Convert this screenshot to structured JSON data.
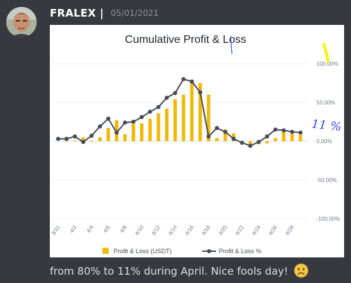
{
  "message": {
    "username": "FRALEX |",
    "timestamp": "05/01/2021",
    "text": "from 80% to 11% during April. Nice fools day!",
    "emoji": "frowning-face"
  },
  "annotations": {
    "handwritten_value": "11 %"
  },
  "chart_data": {
    "type": "bar",
    "title": "Cumulative Profit & Loss",
    "x_ticks": [
      "3/31",
      "4/2",
      "4/4",
      "4/6",
      "4/8",
      "4/10",
      "4/12",
      "4/14",
      "4/16",
      "4/18",
      "4/20",
      "4/22",
      "4/24",
      "4/26",
      "4/28"
    ],
    "y_ticks": [
      "100.00%",
      "50.00%",
      "0.00%",
      "-50.00%",
      "-100.00%"
    ],
    "ylim": [
      -100,
      100
    ],
    "legend_position": "bottom",
    "legend": [
      "Profit & Loss (USDT)",
      "Profit & Loss %"
    ],
    "colors": {
      "bars": "#f0b90b",
      "line": "#474d57",
      "grid": "#eaecef"
    },
    "series": [
      {
        "name": "Profit & Loss (USDT)",
        "type": "bar",
        "x": [
          "4/1",
          "4/2",
          "4/3",
          "4/4",
          "4/5",
          "4/6",
          "4/7",
          "4/8",
          "4/9",
          "4/10",
          "4/11",
          "4/12",
          "4/13",
          "4/14",
          "4/15",
          "4/16",
          "4/17",
          "4/18",
          "4/19",
          "4/20",
          "4/21",
          "4/22",
          "4/23",
          "4/24",
          "4/25",
          "4/26",
          "4/27",
          "4/28",
          "4/29"
        ],
        "values": [
          1,
          1,
          5,
          -1,
          5,
          17,
          27,
          9,
          22,
          23,
          29,
          36,
          42,
          54,
          60,
          78,
          75,
          60,
          4,
          15,
          10,
          0,
          -4,
          -4,
          -3,
          4,
          13,
          11,
          8
        ]
      },
      {
        "name": "Profit & Loss %",
        "type": "line",
        "x": [
          "3/31",
          "4/1",
          "4/2",
          "4/3",
          "4/4",
          "4/5",
          "4/6",
          "4/7",
          "4/8",
          "4/9",
          "4/10",
          "4/11",
          "4/12",
          "4/13",
          "4/14",
          "4/15",
          "4/16",
          "4/17",
          "4/18",
          "4/19",
          "4/20",
          "4/21",
          "4/22",
          "4/23",
          "4/24",
          "4/25",
          "4/26",
          "4/27",
          "4/28",
          "4/29"
        ],
        "values": [
          3,
          3,
          6,
          -1,
          7,
          19,
          29,
          11,
          24,
          25,
          31,
          38,
          44,
          56,
          62,
          80,
          77,
          63,
          6,
          17,
          12,
          3,
          -2,
          -6,
          -1,
          6,
          15,
          14,
          12,
          11
        ]
      }
    ]
  }
}
